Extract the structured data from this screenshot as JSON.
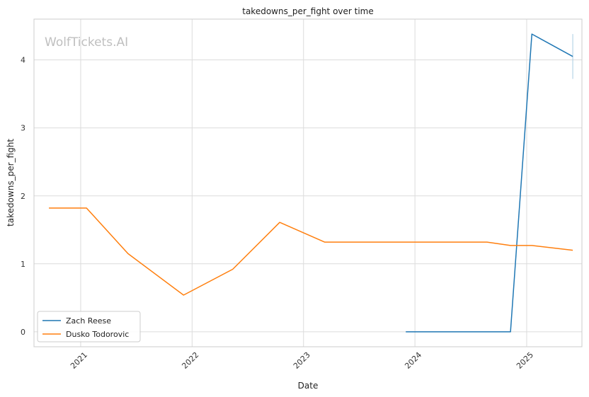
{
  "chart_data": {
    "type": "line",
    "title": "takedowns_per_fight over time",
    "xlabel": "Date",
    "ylabel": "takedowns_per_fight",
    "watermark": "WolfTickets.AI",
    "x_ticks": [
      "2021",
      "2022",
      "2023",
      "2024",
      "2025"
    ],
    "y_ticks": [
      "0",
      "1",
      "2",
      "3",
      "4"
    ],
    "xlim": [
      "2020-08-01",
      "2025-07-01"
    ],
    "ylim": [
      -0.22,
      4.6
    ],
    "grid": true,
    "legend_position": "bottom-left",
    "series": [
      {
        "name": "Zach Reese",
        "color": "#1f77b4",
        "x": [
          "2023-12-02",
          "2024-11-09",
          "2025-01-18",
          "2025-06-01"
        ],
        "y": [
          0,
          0,
          4.38,
          4.05
        ]
      },
      {
        "name": "Dusko Todorovic",
        "color": "#ff7f0e",
        "x": [
          "2020-09-19",
          "2021-01-20",
          "2021-06-05",
          "2021-12-04",
          "2022-05-14",
          "2022-10-15",
          "2023-03-11",
          "2024-08-24",
          "2024-11-09",
          "2025-01-18",
          "2025-06-01"
        ],
        "y": [
          1.82,
          1.82,
          1.15,
          0.54,
          0.92,
          1.61,
          1.32,
          1.32,
          1.27,
          1.27,
          1.2
        ]
      }
    ],
    "error_bar": {
      "series": "Zach Reese",
      "x": "2025-06-01",
      "low": 3.72,
      "high": 4.38,
      "color": "#a9cde3"
    }
  }
}
